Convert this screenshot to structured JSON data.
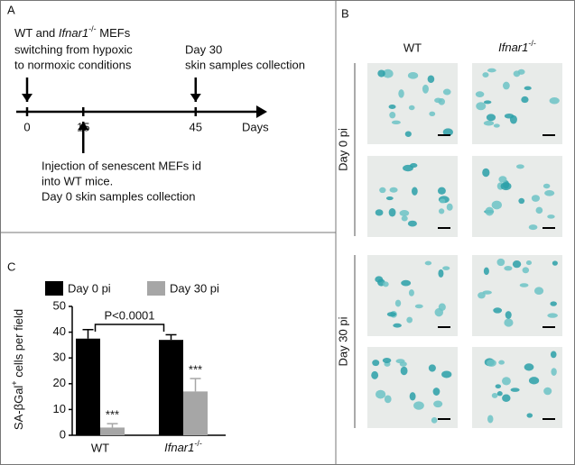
{
  "panel_a": {
    "label": "A",
    "note_left": {
      "line1": {
        "pre": "WT and ",
        "gene": "Ifnar1",
        "sup": "-/-",
        "post": " MEFs"
      },
      "line2": "switching from hypoxic",
      "line3": "to normoxic conditions"
    },
    "note_right": {
      "line1": "Day 30",
      "line2": "skin samples collection"
    },
    "note_bottom": [
      "Injection of senescent MEFs id",
      "into WT mice.",
      "Day 0 skin samples collection"
    ],
    "ticks": [
      0,
      15,
      45
    ],
    "axis_label": "Days"
  },
  "panel_b": {
    "label": "B",
    "columns": [
      {
        "text": "WT"
      },
      {
        "gene": "Ifnar1",
        "sup": "-/-"
      }
    ],
    "rows": [
      "Day 0 pi",
      "Day 30 pi"
    ]
  },
  "chart_data": {
    "type": "bar",
    "panel_label": "C",
    "ylabel": {
      "pre": "SA-βGal",
      "sup": "+",
      "post": " cells per field"
    },
    "categories": [
      {
        "text": "WT"
      },
      {
        "gene": "Ifnar1",
        "sup": "-/-"
      }
    ],
    "series": [
      {
        "name": "Day 0 pi",
        "color": "#000000",
        "values": [
          37.5,
          37
        ],
        "errors": [
          3.5,
          2
        ]
      },
      {
        "name": "Day 30 pi",
        "color": "#a6a6a6",
        "values": [
          3,
          17
        ],
        "errors": [
          1.5,
          5
        ],
        "significance": [
          "***",
          "***"
        ]
      }
    ],
    "annotation": "P<0.0001",
    "ylim": [
      0,
      50
    ],
    "yticks": [
      0,
      10,
      20,
      30,
      40,
      50
    ]
  }
}
